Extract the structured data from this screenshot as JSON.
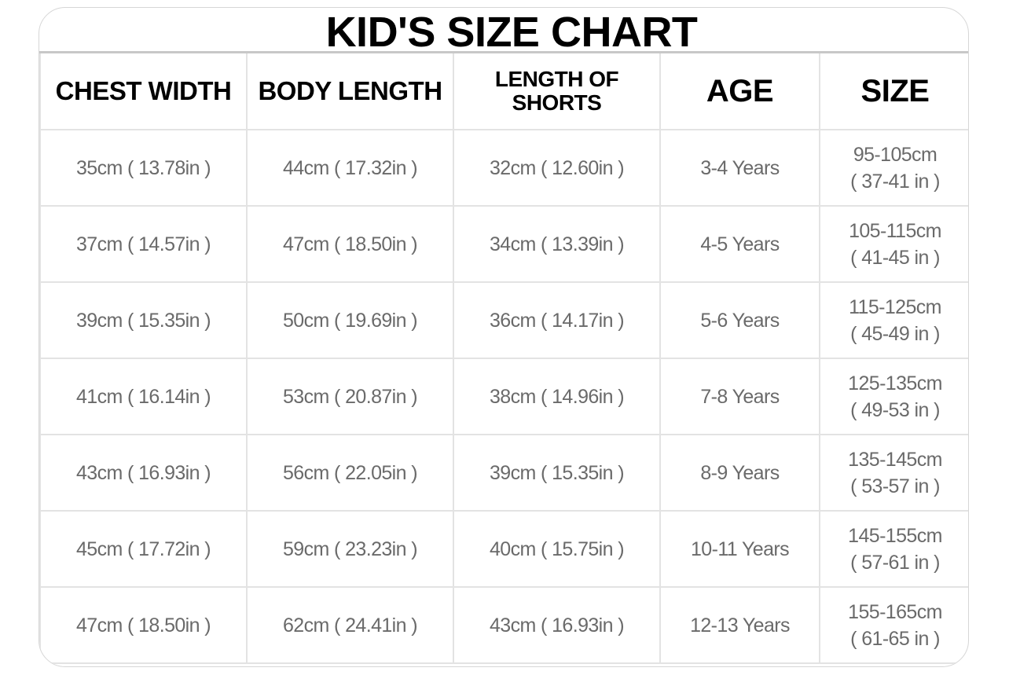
{
  "title": "KID'S SIZE CHART",
  "columns": [
    "CHEST WIDTH",
    "BODY LENGTH",
    "LENGTH OF SHORTS",
    "AGE",
    "SIZE"
  ],
  "rows": [
    {
      "chest": "35cm ( 13.78in )",
      "body": "44cm ( 17.32in )",
      "shorts": "32cm ( 12.60in )",
      "age": "3-4 Years",
      "size_cm": "95-105cm",
      "size_in": "( 37-41 in )"
    },
    {
      "chest": "37cm ( 14.57in )",
      "body": "47cm ( 18.50in )",
      "shorts": "34cm ( 13.39in )",
      "age": "4-5 Years",
      "size_cm": "105-115cm",
      "size_in": "( 41-45 in )"
    },
    {
      "chest": "39cm ( 15.35in )",
      "body": "50cm ( 19.69in )",
      "shorts": "36cm ( 14.17in )",
      "age": "5-6 Years",
      "size_cm": "115-125cm",
      "size_in": "( 45-49 in )"
    },
    {
      "chest": "41cm ( 16.14in )",
      "body": "53cm ( 20.87in )",
      "shorts": "38cm ( 14.96in )",
      "age": "7-8 Years",
      "size_cm": "125-135cm",
      "size_in": "( 49-53 in )"
    },
    {
      "chest": "43cm ( 16.93in )",
      "body": "56cm ( 22.05in )",
      "shorts": "39cm ( 15.35in )",
      "age": "8-9 Years",
      "size_cm": "135-145cm",
      "size_in": "( 53-57 in )"
    },
    {
      "chest": "45cm ( 17.72in )",
      "body": "59cm ( 23.23in )",
      "shorts": "40cm ( 15.75in )",
      "age": "10-11 Years",
      "size_cm": "145-155cm",
      "size_in": "( 57-61 in )"
    },
    {
      "chest": "47cm ( 18.50in )",
      "body": "62cm ( 24.41in )",
      "shorts": "43cm ( 16.93in )",
      "age": "12-13 Years",
      "size_cm": "155-165cm",
      "size_in": "( 61-65 in )"
    }
  ]
}
